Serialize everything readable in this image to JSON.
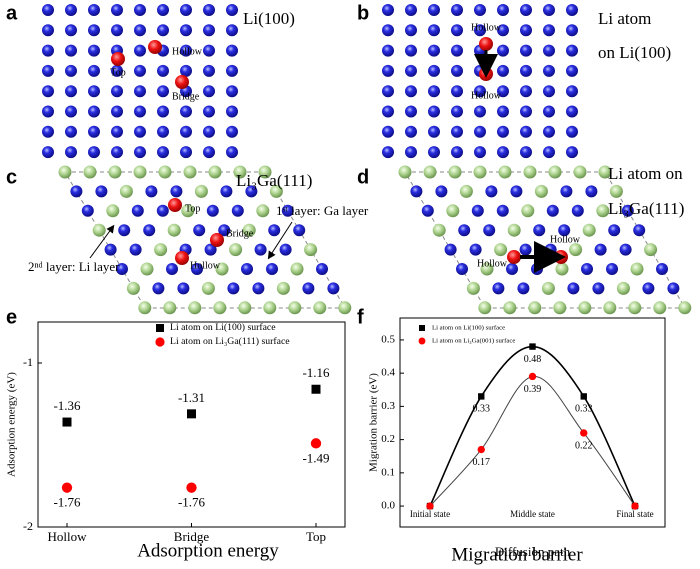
{
  "structures": [
    {
      "label": "a",
      "title": [
        "Li(100)"
      ],
      "sites": [
        "Top",
        "Hollow",
        "Bridge"
      ]
    },
    {
      "label": "b",
      "title": [
        "Li atom",
        "on Li(100)"
      ],
      "sites": [
        "Hollow",
        "Hollow"
      ]
    },
    {
      "label": "c",
      "title": [
        "Li₃Ga(111)"
      ],
      "sites": [
        "Top",
        "Bridge",
        "Hollow"
      ],
      "layers": [
        "1ˢᵗ layer: Ga layer",
        "2ⁿᵈ layer: Li layer"
      ]
    },
    {
      "label": "d",
      "title": [
        "Li atom on",
        "Li₃Ga(111)"
      ],
      "sites": [
        "Hollow",
        "Hollow"
      ]
    }
  ],
  "chart_data": [
    {
      "type": "scatter",
      "panel_label": "e",
      "title": "Adsorption energy",
      "ylabel": "Adsorption energy (eV)",
      "categories": [
        "Hollow",
        "Bridge",
        "Top"
      ],
      "series": [
        {
          "name": "Li atom on Li(100) surface",
          "color": "#000000",
          "marker": "square",
          "values": [
            -1.36,
            -1.31,
            -1.16
          ]
        },
        {
          "name": "Li atom on Li₃Ga(111) surface",
          "color": "#ff0000",
          "marker": "circle",
          "values": [
            -1.76,
            -1.76,
            -1.49
          ]
        }
      ],
      "ylim": [
        -2,
        -0.75
      ],
      "yticks": [
        -1,
        -2
      ]
    },
    {
      "type": "line",
      "panel_label": "f",
      "title": "Migration barrier",
      "xlabel": "Diffusion path",
      "ylabel": "Migration barrier (eV)",
      "categories": [
        "Initial state",
        null,
        "Middle state",
        null,
        "Final state"
      ],
      "series": [
        {
          "name": "Li atom on Li(100) surface",
          "color": "#000000",
          "marker": "square",
          "values": [
            0,
            0.33,
            0.48,
            0.33,
            0
          ],
          "value_labels": [
            null,
            "0.33",
            "0.48",
            "0.33",
            null
          ]
        },
        {
          "name": "Li atom on Li₃Ga(001) surface",
          "color": "#ff0000",
          "marker": "circle",
          "values": [
            0,
            0.17,
            0.39,
            0.22,
            0
          ],
          "value_labels": [
            null,
            "0.17",
            "0.39",
            "0.22",
            null
          ]
        }
      ],
      "ylim": [
        -0.063,
        0.566
      ],
      "yticks": [
        {
          "value": 0,
          "label": "0.0"
        },
        0.1,
        0.2,
        0.3,
        0.4,
        0.5
      ]
    }
  ]
}
